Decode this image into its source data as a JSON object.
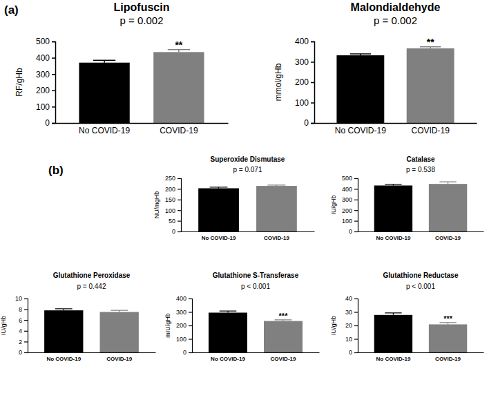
{
  "chart_data": [
    {
      "type": "bar",
      "panel": "(a)",
      "title": "Lipofuscin",
      "subtitle": "p = 0.002",
      "ylabel": "RF/gHb",
      "categories": [
        "No COVID-19",
        "COVID-19"
      ],
      "values": [
        370,
        435
      ],
      "errors": [
        15,
        15
      ],
      "significance": [
        null,
        "**"
      ],
      "colors": [
        "#000000",
        "#808080"
      ],
      "ylim": [
        0,
        500
      ],
      "yticks": [
        0,
        100,
        200,
        300,
        400,
        500
      ]
    },
    {
      "type": "bar",
      "title": "Malondialdehyde",
      "subtitle": "p = 0.002",
      "ylabel": "mmol/gHb",
      "categories": [
        "No COVID-19",
        "COVID-19"
      ],
      "values": [
        332,
        366
      ],
      "errors": [
        7,
        8
      ],
      "significance": [
        null,
        "**"
      ],
      "colors": [
        "#000000",
        "#808080"
      ],
      "ylim": [
        0,
        400
      ],
      "yticks": [
        0,
        100,
        200,
        300,
        400
      ]
    },
    {
      "type": "bar",
      "panel": "(b)",
      "title": "Superoxide Dismutase",
      "subtitle": "p = 0.071",
      "ylabel": "NU/mgHb",
      "categories": [
        "No COVID-19",
        "COVID-19"
      ],
      "values": [
        203,
        214
      ],
      "errors": [
        5,
        4
      ],
      "colors": [
        "#000000",
        "#808080"
      ],
      "ylim": [
        0,
        250
      ],
      "yticks": [
        0,
        50,
        100,
        150,
        200,
        250
      ]
    },
    {
      "type": "bar",
      "title": "Catalase",
      "subtitle": "p = 0.538",
      "ylabel": "IU/gHb",
      "categories": [
        "No COVID-19",
        "COVID-19"
      ],
      "values": [
        432,
        447
      ],
      "errors": [
        12,
        20
      ],
      "colors": [
        "#000000",
        "#808080"
      ],
      "ylim": [
        0,
        500
      ],
      "yticks": [
        0,
        100,
        200,
        300,
        400,
        500
      ]
    },
    {
      "type": "bar",
      "title": "Glutathione Peroxidase",
      "subtitle": "p = 0.442",
      "ylabel": "IU/gHb",
      "categories": [
        "No COVID-19",
        "COVID-19"
      ],
      "values": [
        7.8,
        7.5
      ],
      "errors": [
        0.3,
        0.3
      ],
      "colors": [
        "#000000",
        "#808080"
      ],
      "ylim": [
        0,
        10
      ],
      "yticks": [
        0,
        2,
        4,
        6,
        8,
        10
      ]
    },
    {
      "type": "bar",
      "title": "Glutathione S-Transferase",
      "subtitle": "p < 0.001",
      "ylabel": "mIU/gHb",
      "categories": [
        "No COVID-19",
        "COVID-19"
      ],
      "values": [
        295,
        233
      ],
      "errors": [
        12,
        9
      ],
      "significance": [
        null,
        "***"
      ],
      "colors": [
        "#000000",
        "#808080"
      ],
      "ylim": [
        0,
        400
      ],
      "yticks": [
        0,
        100,
        200,
        300,
        400
      ]
    },
    {
      "type": "bar",
      "title": "Glutathione Reductase",
      "subtitle": "p < 0.001",
      "ylabel": "IU/gHb",
      "categories": [
        "No COVID-19",
        "COVID-19"
      ],
      "values": [
        27.8,
        20.8
      ],
      "errors": [
        1.5,
        1.3
      ],
      "significance": [
        null,
        "***"
      ],
      "colors": [
        "#000000",
        "#808080"
      ],
      "ylim": [
        0,
        40
      ],
      "yticks": [
        0,
        10,
        20,
        30,
        40
      ]
    }
  ]
}
